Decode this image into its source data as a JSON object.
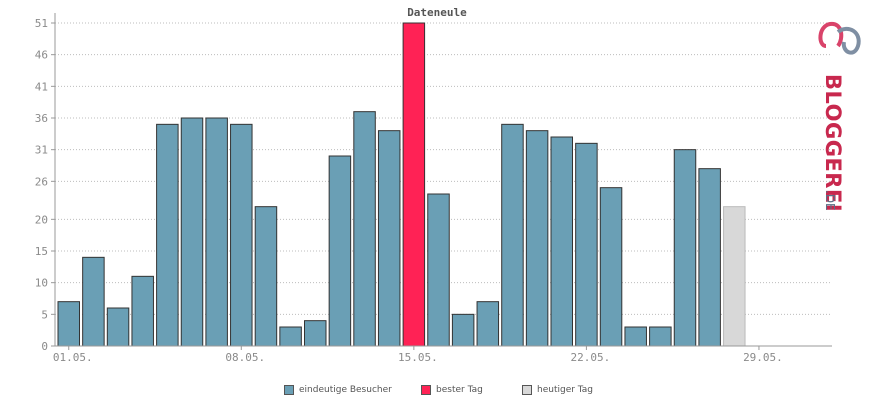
{
  "chart_data": {
    "type": "bar",
    "title": "Dateneule",
    "ylim": [
      0,
      51
    ],
    "yticks": [
      0,
      5,
      10,
      15,
      20,
      26,
      31,
      36,
      41,
      46,
      51
    ],
    "xtick_labels": [
      "01.05.",
      "08.05.",
      "15.05.",
      "22.05.",
      "29.05."
    ],
    "xtick_day_index": [
      0,
      7,
      14,
      21,
      28
    ],
    "num_slots": 31,
    "grid": "horizontal dotted",
    "legend_position": "bottom",
    "series": [
      {
        "name": "eindeutige Besucher",
        "color": "#6a9fb5",
        "values": [
          7,
          14,
          6,
          11,
          35,
          36,
          36,
          35,
          22,
          3,
          4,
          30,
          37,
          34,
          null,
          24,
          5,
          7,
          35,
          34,
          33,
          32,
          25,
          3,
          3,
          31,
          28,
          null
        ]
      },
      {
        "name": "bester Tag",
        "color": "#ff2255",
        "values": [
          null,
          null,
          null,
          null,
          null,
          null,
          null,
          null,
          null,
          null,
          null,
          null,
          null,
          null,
          51,
          null,
          null,
          null,
          null,
          null,
          null,
          null,
          null,
          null,
          null,
          null,
          null,
          null
        ]
      },
      {
        "name": "heutiger Tag",
        "color": "#d8d8d8",
        "values": [
          null,
          null,
          null,
          null,
          null,
          null,
          null,
          null,
          null,
          null,
          null,
          null,
          null,
          null,
          null,
          null,
          null,
          null,
          null,
          null,
          null,
          null,
          null,
          null,
          null,
          null,
          null,
          22
        ]
      }
    ]
  },
  "legend": [
    {
      "label": "eindeutige Besucher",
      "color": "#6a9fb5"
    },
    {
      "label": "bester Tag",
      "color": "#ff2255"
    },
    {
      "label": "heutiger Tag",
      "color": "#d8d8d8"
    }
  ],
  "logo": {
    "text": "BLOGGEREI",
    "suffix": ".DE",
    "colors": [
      "#c8284e",
      "#5a6f86"
    ]
  }
}
